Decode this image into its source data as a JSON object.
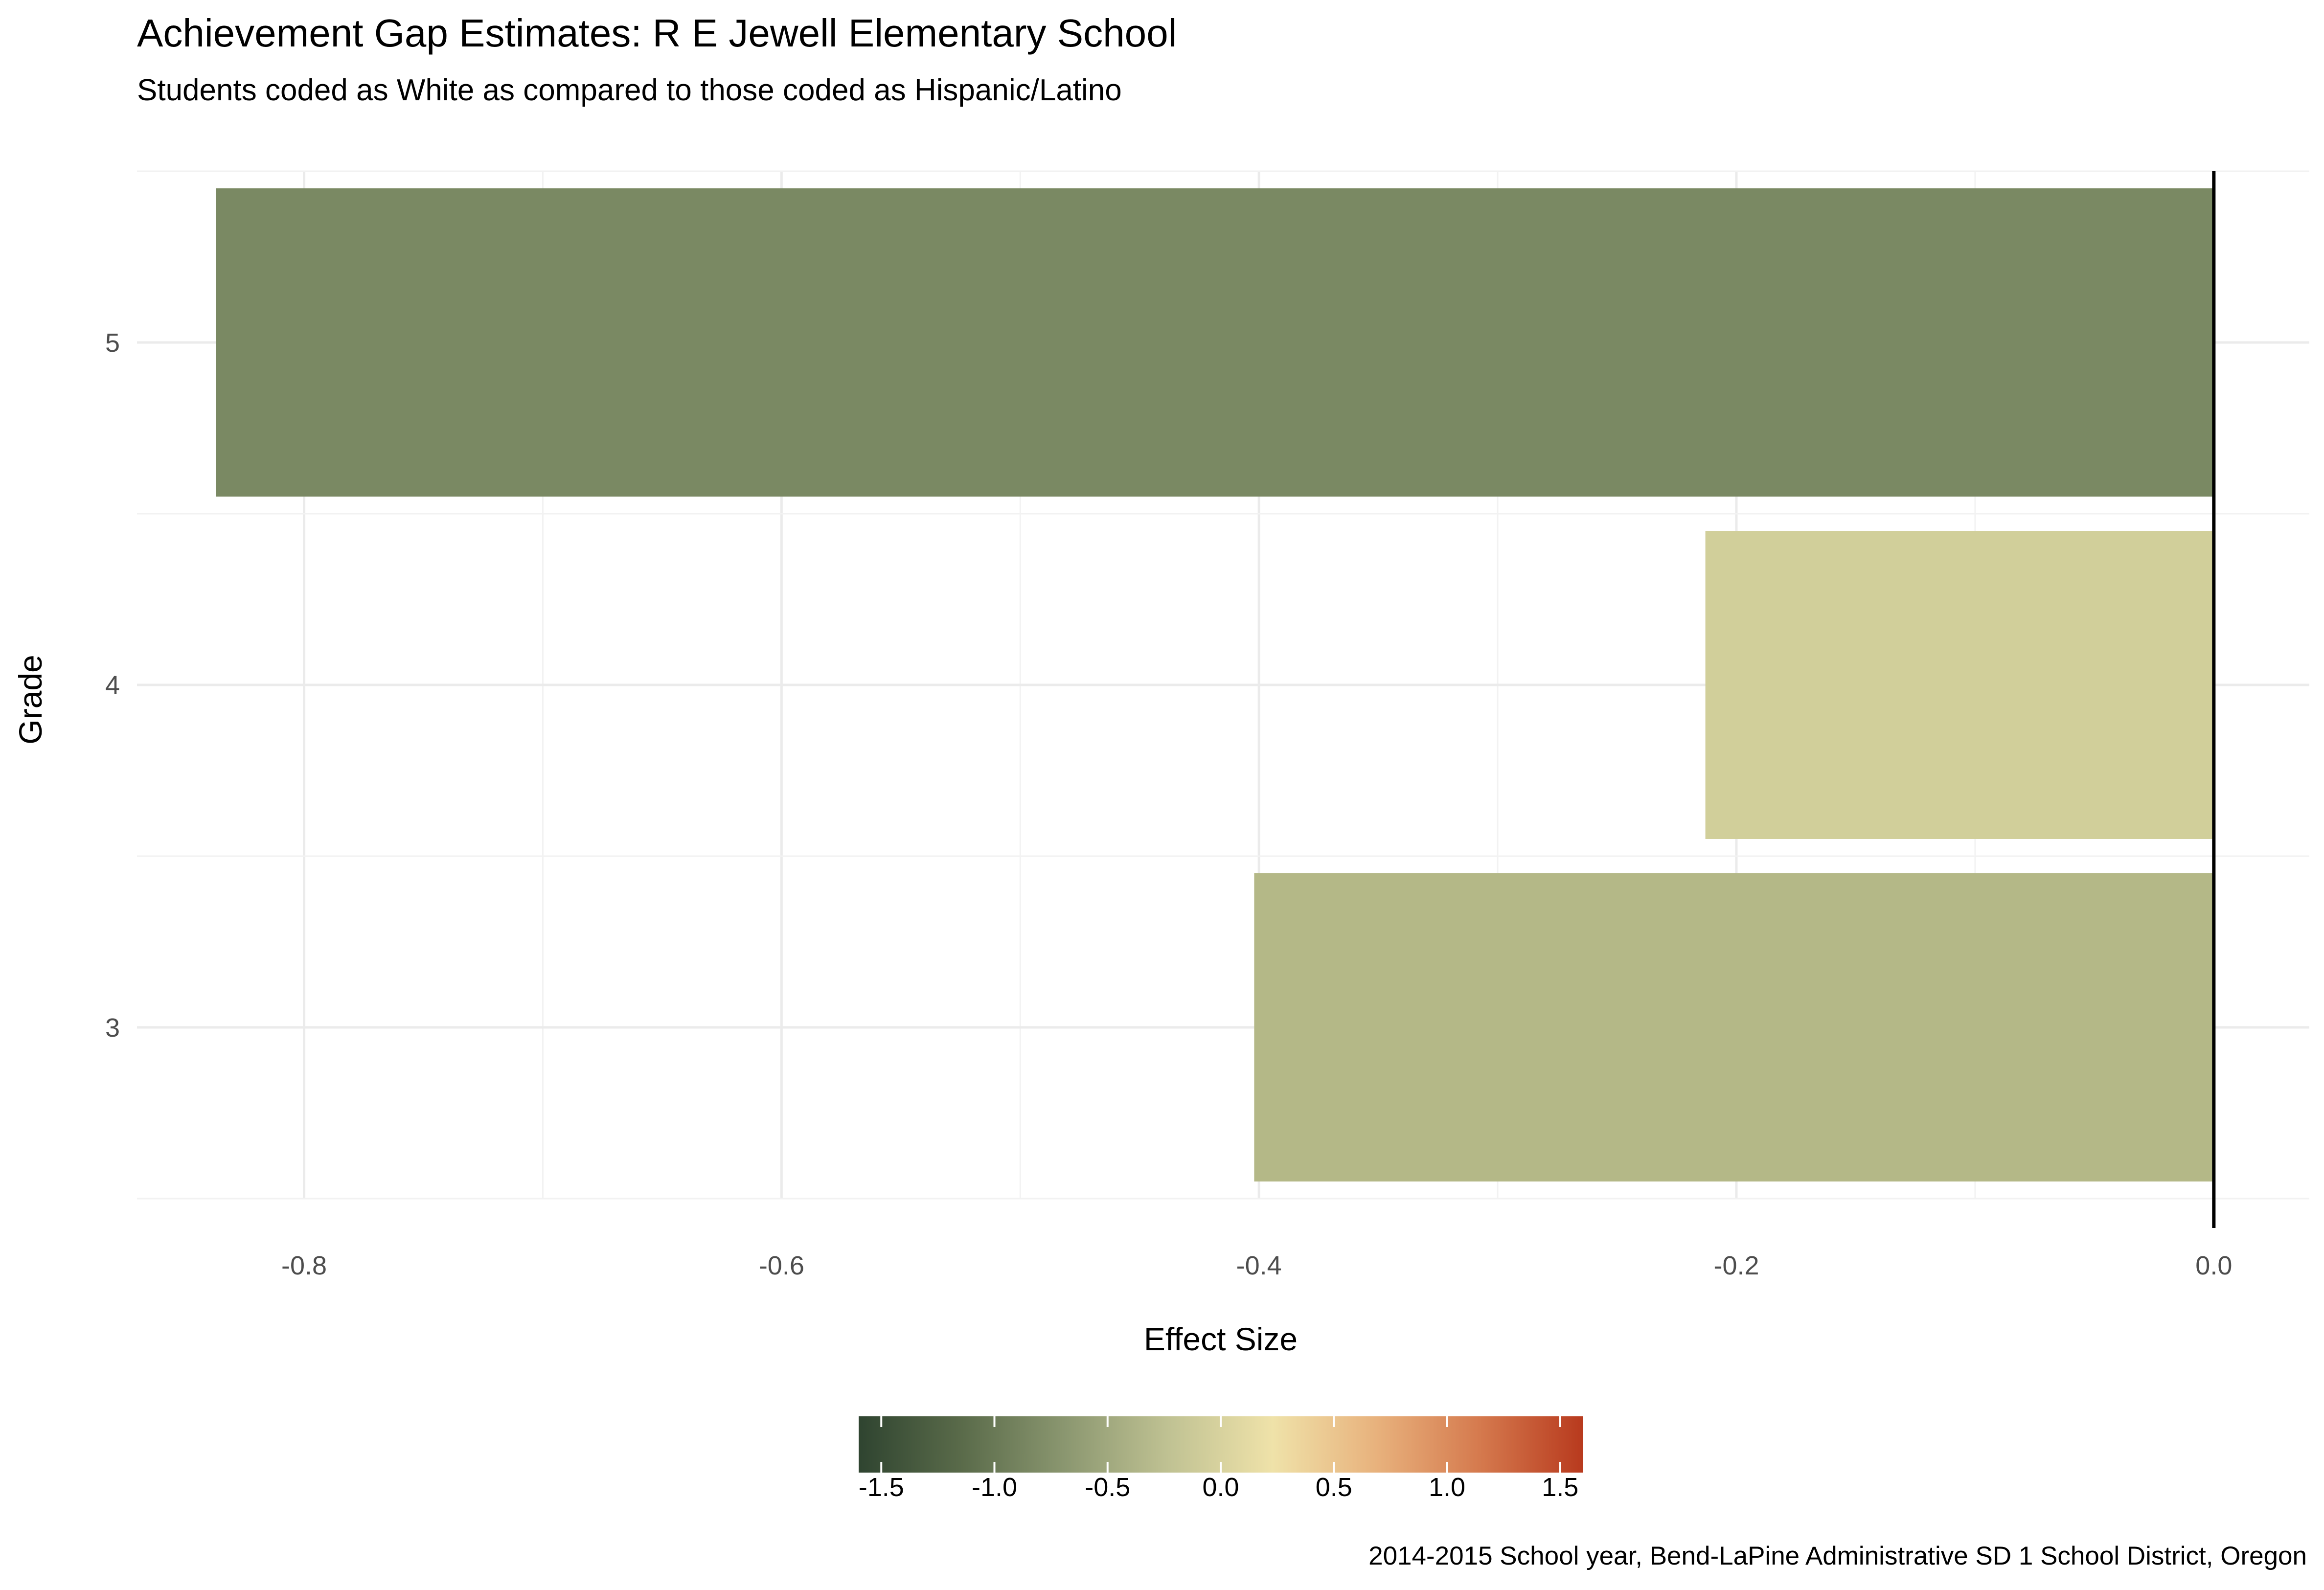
{
  "title": "Achievement Gap Estimates: R E Jewell Elementary School",
  "subtitle": "Students coded as White as compared to those coded as Hispanic/Latino",
  "caption": "2014-2015 School year, Bend-LaPine Administrative SD 1 School District, Oregon",
  "chart_data": {
    "type": "bar",
    "orientation": "horizontal",
    "title": "Achievement Gap Estimates: R E Jewell Elementary School",
    "subtitle": "Students coded as White as compared to those coded as Hispanic/Latino",
    "xlabel": "Effect Size",
    "ylabel": "Grade",
    "categories": [
      "3",
      "4",
      "5"
    ],
    "values": [
      -0.402,
      -0.213,
      -0.837
    ],
    "bar_colors": [
      "#b4b887",
      "#d1cf9a",
      "#7a8963"
    ],
    "xlim": [
      -0.87,
      0.04
    ],
    "xticks": [
      -0.8,
      -0.6,
      -0.4,
      -0.2,
      0.0
    ],
    "xtick_labels": [
      "-0.8",
      "-0.6",
      "-0.4",
      "-0.2",
      "0.0"
    ],
    "grid": true,
    "reference_line": 0,
    "legend": {
      "type": "colorbar",
      "placement": "bottom",
      "range": [
        -1.6,
        1.6
      ],
      "ticks": [
        -1.5,
        -1.0,
        -0.5,
        0.0,
        0.5,
        1.0,
        1.5
      ],
      "tick_labels": [
        "-1.5",
        "-1.0",
        "-0.5",
        "0.0",
        "0.5",
        "1.0",
        "1.5"
      ],
      "colors": [
        "#2f4430",
        "#5a6b4a",
        "#8b9770",
        "#c0c293",
        "#efe2a9",
        "#e8b27d",
        "#d57a4e",
        "#b83a1e"
      ]
    }
  }
}
